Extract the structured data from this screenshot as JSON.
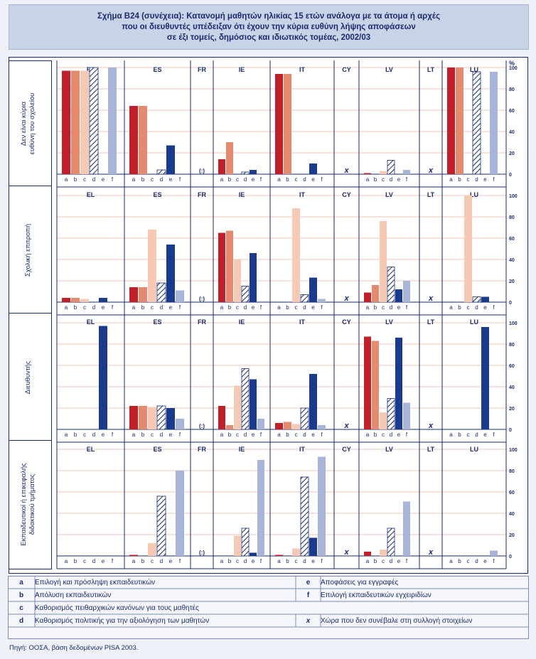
{
  "title": {
    "line1": "Σχήμα B24 (συνέχεια): Κατανομή μαθητών ηλικίας 15 ετών ανάλογα με τα άτομα ή αρχές",
    "line2": "που οι διευθυντές υπέδειξαν ότι έχουν την κύρια ευθύνη λήψης αποφάσεων",
    "line3": "σε έξι τομείς, δημόσιος και ιδιωτικός τομέας, 2002/03"
  },
  "colors": {
    "a": "#c0202a",
    "b": "#e58a6e",
    "c": "#f6c9b4",
    "d": "#1a2a6c",
    "e": "#1a3a8c",
    "f": "#a8b4d8",
    "grid": "#e8b3a3",
    "border": "#1a2a6c",
    "text": "#1a2a6c"
  },
  "chart_data": {
    "type": "bar",
    "y_unit": "%",
    "ylim": [
      0,
      100
    ],
    "yticks": [
      "0",
      "20",
      "40",
      "60",
      "80",
      "100"
    ],
    "categories": [
      "a",
      "b",
      "c",
      "d",
      "e",
      "f"
    ],
    "category_axis_label": "a b c d e f",
    "countries": [
      "EL",
      "ES",
      "FR",
      "IE",
      "IT",
      "CY",
      "LV",
      "LT",
      "LU"
    ],
    "rows": [
      {
        "label": "Δεν είναι κύρια ευθύνη του σχολείου",
        "panels": {
          "EL": [
            97,
            97,
            97,
            100,
            0,
            100
          ],
          "ES": [
            64,
            64,
            0,
            4,
            27,
            0
          ],
          "FR": "(:)",
          "IE": [
            14,
            30,
            0,
            2,
            4,
            0
          ],
          "IT": [
            94,
            94,
            0,
            0,
            10,
            0
          ],
          "CY": "x",
          "LV": [
            1,
            0,
            3,
            13,
            0,
            4
          ],
          "LT": "x",
          "LU": [
            100,
            100,
            0,
            96,
            0,
            96
          ]
        }
      },
      {
        "label": "Σχολική επιτροπή",
        "panels": {
          "EL": [
            4,
            4,
            3,
            0,
            4,
            0
          ],
          "ES": [
            14,
            14,
            68,
            18,
            54,
            11
          ],
          "FR": "(:)",
          "IE": [
            65,
            67,
            40,
            15,
            46,
            0
          ],
          "IT": [
            0,
            0,
            88,
            7,
            23,
            3
          ],
          "CY": "x",
          "LV": [
            9,
            16,
            76,
            33,
            12,
            20
          ],
          "LT": "x",
          "LU": [
            0,
            0,
            100,
            5,
            5,
            0
          ]
        }
      },
      {
        "label": "Διευθυντής",
        "panels": {
          "EL": [
            0,
            0,
            0,
            0,
            97,
            0
          ],
          "ES": [
            22,
            22,
            21,
            22,
            20,
            10
          ],
          "FR": "(:)",
          "IE": [
            22,
            4,
            41,
            57,
            47,
            10
          ],
          "IT": [
            6,
            7,
            5,
            20,
            52,
            4
          ],
          "CY": "x",
          "LV": [
            87,
            83,
            16,
            29,
            86,
            25
          ],
          "LT": "x",
          "LU": [
            0,
            0,
            0,
            0,
            96,
            0
          ]
        }
      },
      {
        "label": "Εκπαιδευτικοί ή επικεφαλής διδακτικού τμήματος",
        "panels": {
          "EL": [
            0,
            0,
            0,
            0,
            0,
            0
          ],
          "ES": [
            1,
            0,
            12,
            56,
            0,
            80
          ],
          "FR": "(:)",
          "IE": [
            0,
            0,
            19,
            26,
            3,
            90
          ],
          "IT": [
            1,
            0,
            7,
            74,
            17,
            93
          ],
          "CY": "x",
          "LV": [
            4,
            0,
            6,
            26,
            0,
            51
          ],
          "LT": "x",
          "LU": [
            0,
            0,
            0,
            0,
            0,
            5
          ]
        }
      }
    ]
  },
  "legend": [
    {
      "key": "a",
      "text": "Επιλογή και πρόσληψη εκπαιδευτικών"
    },
    {
      "key": "b",
      "text": "Απόλυση εκπαιδευτικών"
    },
    {
      "key": "c",
      "text": "Καθορισμός πειθαρχικών κανόνων για τους μαθητές"
    },
    {
      "key": "d",
      "text": "Καθορισμός πολιτικής για την αξιολόγηση των μαθητών"
    },
    {
      "key": "e",
      "text": "Αποφάσεις για εγγραφές"
    },
    {
      "key": "f",
      "text": "Επιλογή εκπαιδευτικών εγχειριδίων"
    },
    {
      "key": "x",
      "text": "Χώρα που δεν συνέβαλε στη συλλογή στοιχείων"
    }
  ],
  "source": {
    "prefix": "Πηγή:",
    "text": " ΟΟΣΑ, βάση δεδομένων PISA 2003."
  }
}
